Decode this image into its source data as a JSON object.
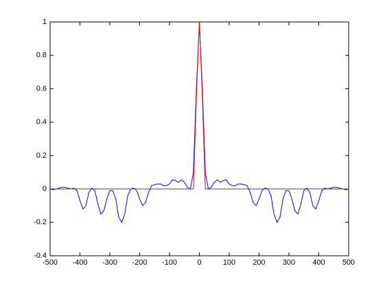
{
  "chart_data": {
    "type": "line",
    "x": [
      -500,
      -490,
      -480,
      -470,
      -460,
      -450,
      -440,
      -430,
      -420,
      -410,
      -400,
      -390,
      -380,
      -370,
      -360,
      -350,
      -340,
      -330,
      -320,
      -310,
      -300,
      -290,
      -280,
      -270,
      -260,
      -250,
      -240,
      -230,
      -220,
      -210,
      -200,
      -190,
      -180,
      -170,
      -160,
      -150,
      -140,
      -130,
      -120,
      -110,
      -100,
      -90,
      -80,
      -70,
      -60,
      -50,
      -40,
      -30,
      -20,
      -10,
      0,
      10,
      20,
      30,
      40,
      50,
      60,
      70,
      80,
      90,
      100,
      110,
      120,
      130,
      140,
      150,
      160,
      170,
      180,
      190,
      200,
      210,
      220,
      230,
      240,
      250,
      260,
      270,
      280,
      290,
      300,
      310,
      320,
      330,
      340,
      350,
      360,
      370,
      380,
      390,
      400,
      410,
      420,
      430,
      440,
      450,
      460,
      470,
      480,
      490,
      500
    ],
    "series": [
      {
        "color": "#0000ff",
        "values": [
          0,
          -0.005,
          0,
          0.005,
          0.01,
          0.01,
          0.005,
          0,
          0.005,
          -0.01,
          -0.07,
          -0.12,
          -0.1,
          -0.02,
          0.005,
          -0.01,
          -0.09,
          -0.15,
          -0.13,
          -0.06,
          -0.01,
          -0.01,
          -0.06,
          -0.17,
          -0.2,
          -0.15,
          -0.04,
          0,
          0.005,
          -0.01,
          -0.06,
          -0.1,
          -0.08,
          -0.02,
          0.02,
          0.025,
          0.03,
          0.03,
          0.02,
          0.02,
          0.03,
          0.055,
          0.05,
          0.04,
          0.055,
          0.04,
          0.01,
          0,
          0.1,
          0.6,
          1,
          0.6,
          0.1,
          0,
          0.01,
          0.04,
          0.055,
          0.04,
          0.05,
          0.055,
          0.03,
          0.02,
          0.02,
          0.03,
          0.03,
          0.025,
          0.02,
          -0.02,
          -0.08,
          -0.1,
          -0.06,
          -0.01,
          0.005,
          0,
          -0.04,
          -0.15,
          -0.2,
          -0.17,
          -0.06,
          -0.01,
          -0.01,
          -0.06,
          -0.13,
          -0.15,
          -0.09,
          -0.01,
          0.005,
          -0.02,
          -0.1,
          -0.12,
          -0.07,
          -0.01,
          0.005,
          0,
          0.005,
          0.01,
          0.01,
          0.005,
          0,
          -0.005,
          0
        ]
      },
      {
        "color": "#ff0000",
        "values": [
          0,
          0,
          0,
          0,
          0,
          0,
          0,
          0,
          0,
          0,
          0,
          0,
          0,
          0,
          0,
          0,
          0,
          0,
          0,
          0,
          0,
          0,
          0,
          0,
          0,
          0,
          0,
          0,
          0,
          0,
          0,
          0,
          0,
          0,
          0,
          0,
          0,
          0,
          0,
          0,
          0,
          0,
          0,
          0,
          0,
          0,
          0,
          0,
          0,
          0.55,
          1,
          0.55,
          0,
          0,
          0,
          0,
          0,
          0,
          0,
          0,
          0,
          0,
          0,
          0,
          0,
          0,
          0,
          0,
          0,
          0,
          0,
          0,
          0,
          0,
          0,
          0,
          0,
          0,
          0,
          0,
          0,
          0,
          0,
          0,
          0,
          0,
          0,
          0,
          0,
          0,
          0,
          0,
          0,
          0,
          0,
          0,
          0,
          0,
          0,
          0,
          0
        ]
      }
    ],
    "xlim": [
      -500,
      500
    ],
    "xticks": [
      -500,
      -400,
      -300,
      -200,
      -100,
      0,
      100,
      200,
      300,
      400,
      500
    ],
    "ylim": [
      -0.4,
      1
    ],
    "yticks": [
      -0.4,
      -0.2,
      0,
      0.2,
      0.4,
      0.6,
      0.8,
      1
    ]
  }
}
